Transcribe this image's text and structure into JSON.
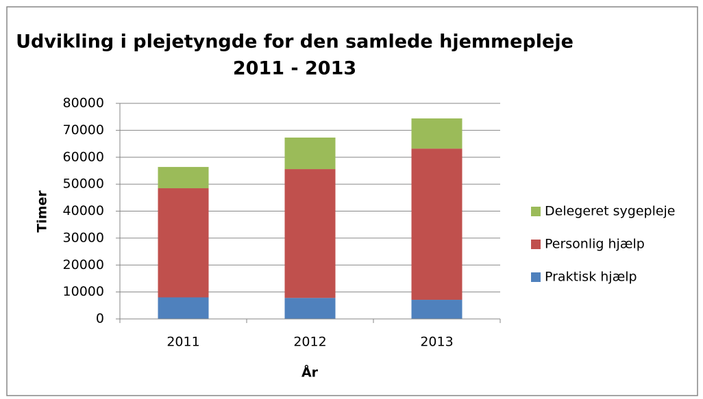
{
  "chart_data": {
    "type": "stacked-bar",
    "title": [
      "Udvikling i plejetyngde for den samlede hjemmepleje",
      "2011 - 2013"
    ],
    "x_label": "År",
    "y_label": "Timer",
    "categories": [
      "2011",
      "2012",
      "2013"
    ],
    "series": [
      {
        "name": "Praktisk hjælp",
        "color": "#4f81bd",
        "values": [
          8000,
          7800,
          7100
        ]
      },
      {
        "name": "Personlig hjælp",
        "color": "#c0504d",
        "values": [
          40500,
          47800,
          56100
        ]
      },
      {
        "name": "Delegeret sygepleje",
        "color": "#9bbb59",
        "values": [
          7900,
          11700,
          11200
        ]
      }
    ],
    "ylim": [
      0,
      80000
    ],
    "yticks": [
      0,
      10000,
      20000,
      30000,
      40000,
      50000,
      60000,
      70000,
      80000
    ],
    "grid": true,
    "legend": "right"
  }
}
